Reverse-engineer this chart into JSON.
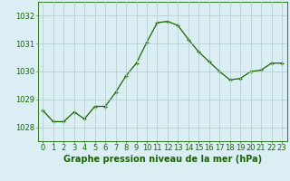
{
  "x": [
    0,
    1,
    2,
    3,
    4,
    5,
    6,
    7,
    8,
    9,
    10,
    11,
    12,
    13,
    14,
    15,
    16,
    17,
    18,
    19,
    20,
    21,
    22,
    23
  ],
  "y": [
    1028.6,
    1028.2,
    1028.2,
    1028.55,
    1028.3,
    1028.75,
    1028.75,
    1029.25,
    1029.85,
    1030.3,
    1031.05,
    1031.75,
    1031.8,
    1031.65,
    1031.15,
    1030.7,
    1030.35,
    1030.0,
    1029.7,
    1029.75,
    1030.0,
    1030.05,
    1030.3,
    1030.3
  ],
  "line_color": "#1a6600",
  "bg_color": "#daeef3",
  "grid_color": "#b0cccc",
  "axis_label_color": "#1a6600",
  "tick_color": "#1a6600",
  "xlabel": "Graphe pression niveau de la mer (hPa)",
  "ylim": [
    1027.5,
    1032.5
  ],
  "yticks": [
    1028,
    1029,
    1030,
    1031,
    1032
  ],
  "xticks": [
    0,
    1,
    2,
    3,
    4,
    5,
    6,
    7,
    8,
    9,
    10,
    11,
    12,
    13,
    14,
    15,
    16,
    17,
    18,
    19,
    20,
    21,
    22,
    23
  ],
  "xlabel_fontsize": 7,
  "tick_fontsize": 6,
  "marker_size": 3.5,
  "linewidth": 0.9
}
